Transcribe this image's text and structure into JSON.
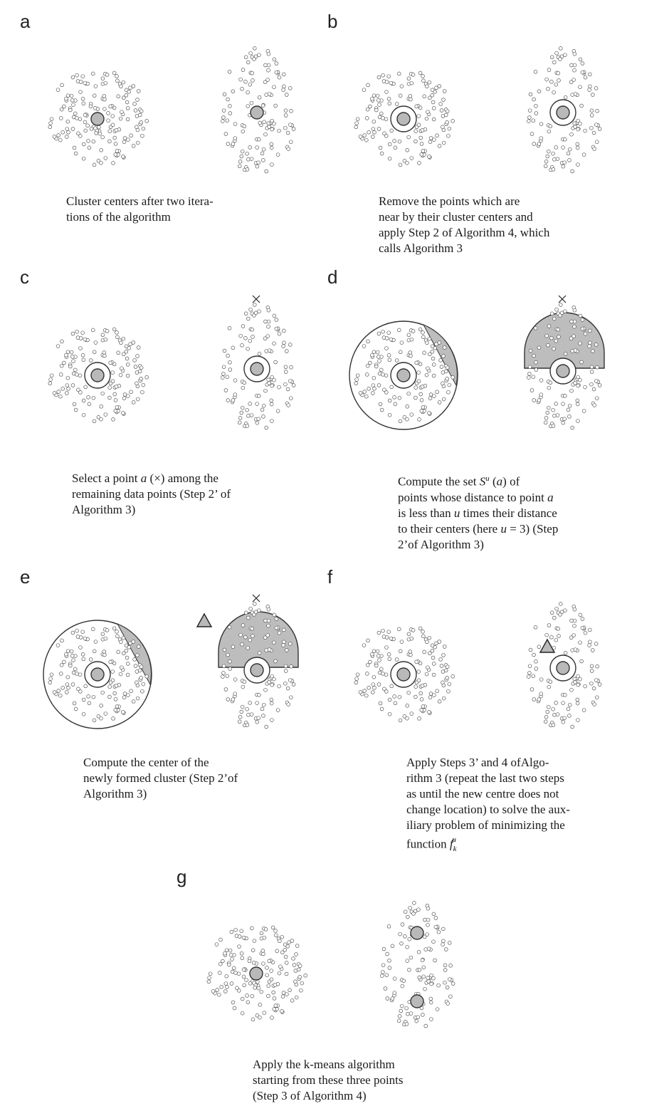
{
  "panels": {
    "a": {
      "label": "a",
      "caption": [
        "Cluster centers after two itera-",
        "tions of the algorithm"
      ]
    },
    "b": {
      "label": "b",
      "caption": [
        "Remove the points which are",
        "near by their cluster centers and",
        "apply Step 2 of Algorithm 4, which",
        "calls Algorithm 3"
      ]
    },
    "c": {
      "label": "c",
      "caption": [
        "Select a point",
        "a",
        "(×) among the",
        "remaining data points (Step 2’ of",
        "Algorithm 3)"
      ]
    },
    "d": {
      "label": "d",
      "caption": [
        "Compute the set",
        "S",
        "u",
        "(",
        "a",
        ") of",
        "points whose distance to point",
        "a",
        "is less than",
        "u",
        "times their distance",
        "to their centers (here",
        "u",
        "= 3) (Step",
        "2’of Algorithm 3)"
      ]
    },
    "e": {
      "label": "e",
      "caption": [
        "Compute the center of the",
        "newly formed cluster (Step 2’of",
        "Algorithm 3)"
      ]
    },
    "f": {
      "label": "f",
      "caption": [
        "Apply Steps 3’ and 4 ofAlgo-",
        "rithm 3 (repeat the last two steps",
        "as until the new centre does not",
        "change location) to solve the aux-",
        "iliary problem of minimizing the",
        "function",
        "f",
        "k",
        "u"
      ]
    },
    "g": {
      "label": "g",
      "caption": [
        "Apply the k-means algorithm",
        "starting from these three points",
        "(Step 3 of Algorithm 4)"
      ]
    }
  },
  "colors": {
    "center_fill": "#b9b9b9",
    "region_fill": "#bdbdbd",
    "stroke": "#333333"
  }
}
